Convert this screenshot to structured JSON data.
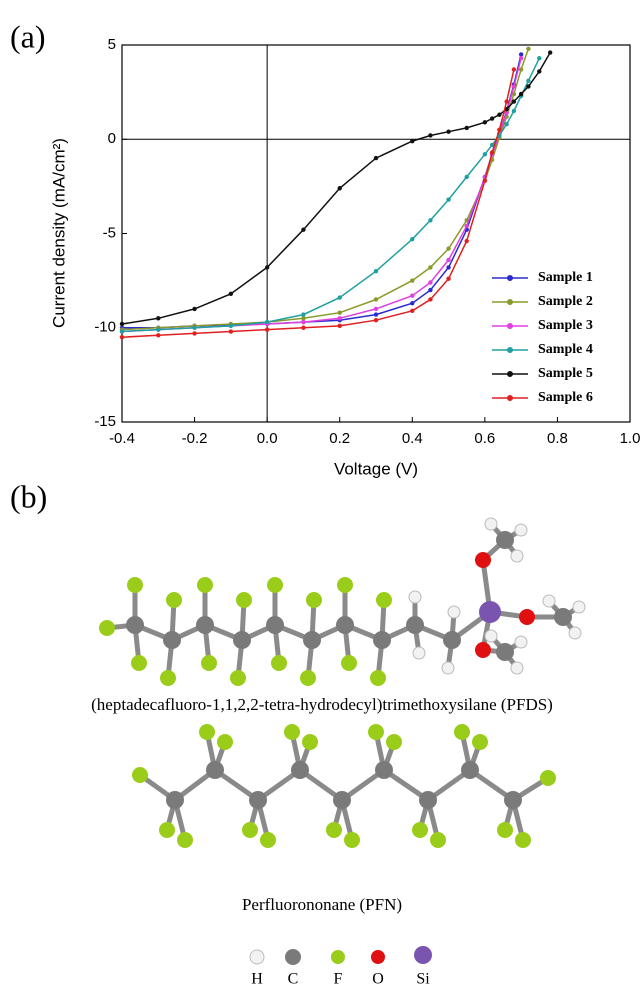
{
  "panel_labels": [
    "(a)",
    "(b)"
  ],
  "chart_data": {
    "type": "line",
    "xlabel": "Voltage (V)",
    "ylabel": "Current density (mA/cm²)",
    "x": [
      -0.4,
      -0.3,
      -0.2,
      -0.1,
      0,
      0.1,
      0.2,
      0.3,
      0.4,
      0.45,
      0.5,
      0.55,
      0.6,
      0.62,
      0.64,
      0.66,
      0.68,
      0.7,
      0.72,
      0.75,
      0.78
    ],
    "xlim": [
      -0.4,
      1.0
    ],
    "ylim": [
      -15,
      5
    ],
    "xticks": [
      -0.4,
      -0.2,
      {
        "value": 0,
        "label": "0.0"
      },
      0.2,
      0.4,
      0.6,
      0.8,
      {
        "value": 1,
        "label": "1.0"
      }
    ],
    "yticks": [
      5,
      0,
      -5,
      -10,
      -15
    ],
    "legend_position": "lower right",
    "series": [
      {
        "name": "Sample 1",
        "color": "#2b2bd0",
        "values": [
          -10.0,
          -10.0,
          -9.9,
          -9.85,
          -9.8,
          -9.7,
          -9.6,
          -9.3,
          -8.7,
          -8.0,
          -6.8,
          -4.8,
          -2.0,
          -0.8,
          0.3,
          1.5,
          2.9,
          4.5,
          null,
          null,
          null
        ]
      },
      {
        "name": "Sample 2",
        "color": "#8a9a2a",
        "values": [
          -10.1,
          -10.0,
          -9.9,
          -9.8,
          -9.7,
          -9.5,
          -9.2,
          -8.5,
          -7.5,
          -6.8,
          -5.8,
          -4.3,
          -2.2,
          -1.1,
          0.1,
          1.2,
          2.4,
          3.7,
          4.8,
          null,
          null
        ]
      },
      {
        "name": "Sample 3",
        "color": "#e040e0",
        "values": [
          -10.2,
          -10.1,
          -10.0,
          -9.9,
          -9.8,
          -9.7,
          -9.5,
          -9.0,
          -8.3,
          -7.6,
          -6.4,
          -4.6,
          -2.0,
          -0.8,
          0.3,
          1.4,
          2.8,
          4.3,
          null,
          null,
          null
        ]
      },
      {
        "name": "Sample 4",
        "color": "#20a0a0",
        "values": [
          -10.2,
          -10.1,
          -10.0,
          -9.9,
          -9.7,
          -9.3,
          -8.4,
          -7.0,
          -5.3,
          -4.3,
          -3.2,
          -2.0,
          -0.8,
          -0.3,
          0.2,
          0.8,
          1.5,
          2.3,
          3.1,
          4.3,
          null
        ]
      },
      {
        "name": "Sample 5",
        "color": "#111111",
        "values": [
          -9.8,
          -9.5,
          -9.0,
          -8.2,
          -6.8,
          -4.8,
          -2.6,
          -1.0,
          -0.1,
          0.2,
          0.4,
          0.6,
          0.9,
          1.1,
          1.3,
          1.6,
          2.0,
          2.4,
          2.8,
          3.6,
          4.6
        ]
      },
      {
        "name": "Sample 6",
        "color": "#e02020",
        "values": [
          -10.5,
          -10.4,
          -10.3,
          -10.2,
          -10.1,
          -10.0,
          -9.9,
          -9.6,
          -9.1,
          -8.5,
          -7.4,
          -5.4,
          -2.2,
          -0.7,
          0.5,
          2.0,
          3.7,
          null,
          null,
          null,
          null
        ]
      }
    ]
  },
  "molecules": [
    {
      "caption": "(heptadecafluoro-1,1,2,2-tetra-hydrodecyl)trimethoxysilane (PFDS)"
    },
    {
      "caption": "Perfluorononane (PFN)"
    }
  ],
  "atom_legend": [
    "H",
    "C",
    "F",
    "O",
    "Si"
  ]
}
